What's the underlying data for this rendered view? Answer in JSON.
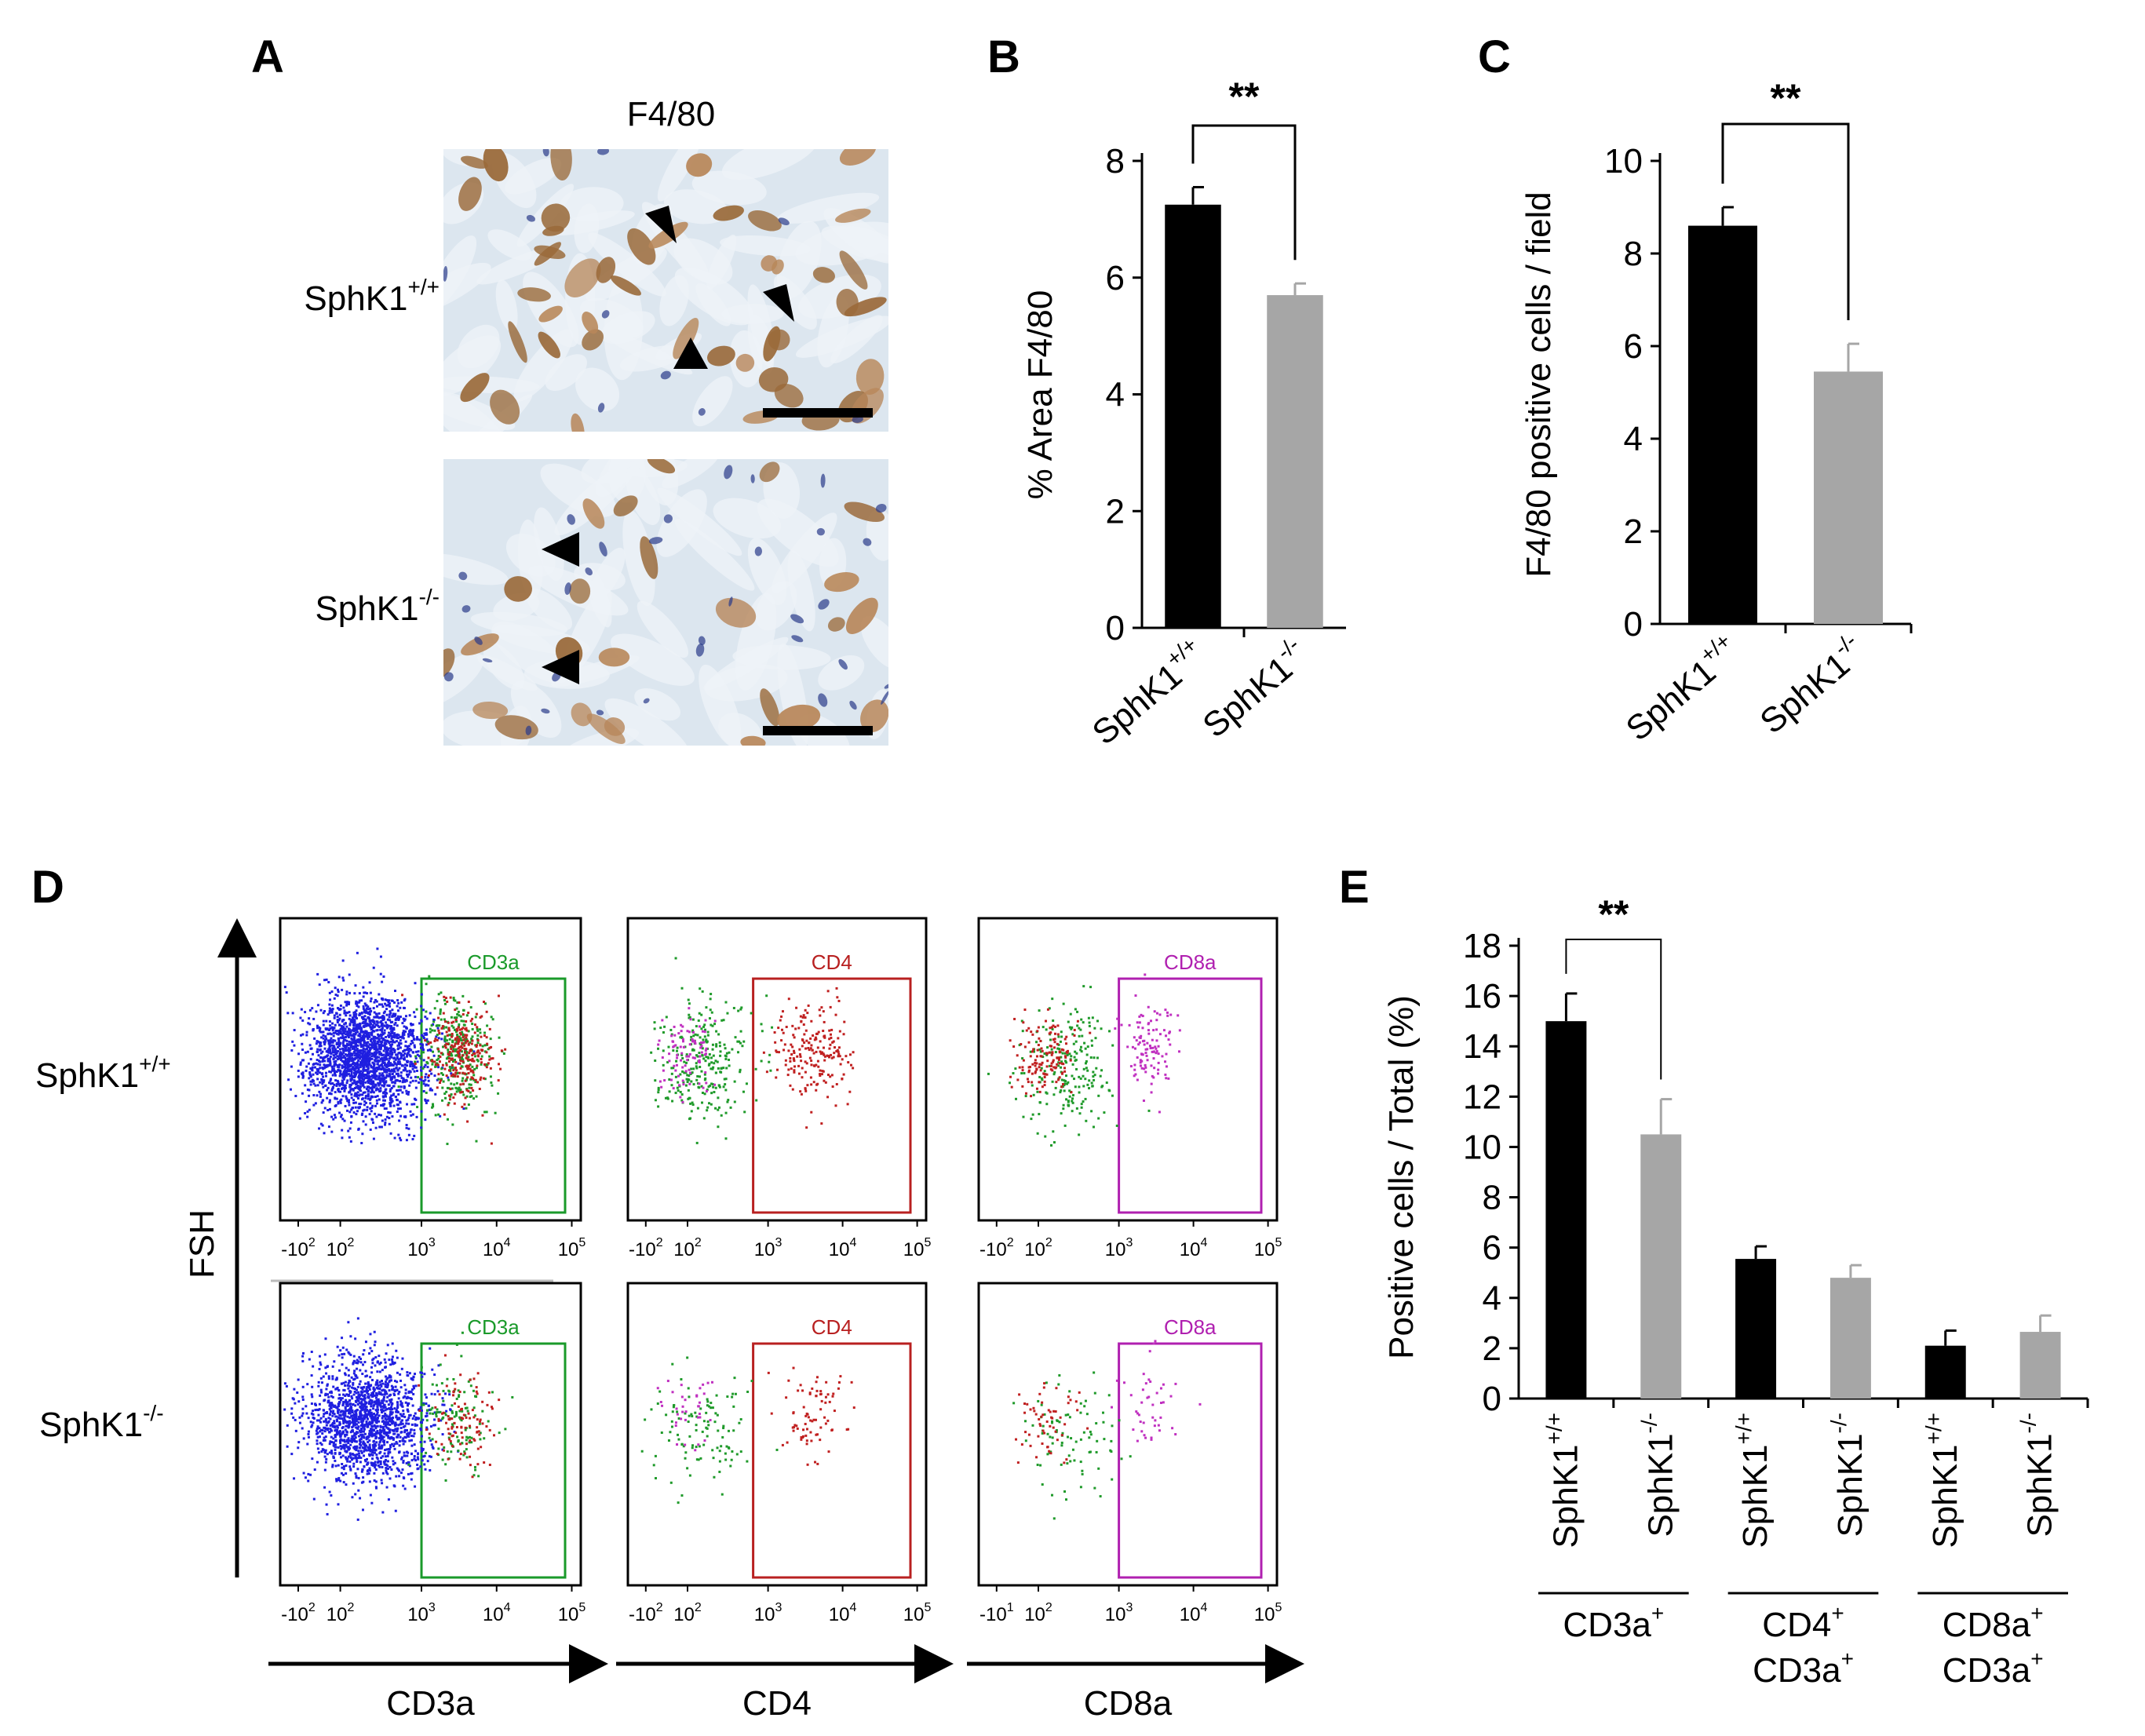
{
  "panel_letters": {
    "A": "A",
    "B": "B",
    "C": "C",
    "D": "D",
    "E": "E"
  },
  "panel_A": {
    "stain_title": "F4/80",
    "rows": [
      {
        "label": "SphK1",
        "sup": "+/+"
      },
      {
        "label": "SphK1",
        "sup": "-/-"
      }
    ],
    "colors": {
      "background": "#dce6ef",
      "stain": "#9a6a3a",
      "nuclei": "#2a3a8a",
      "arrow": "#000000"
    }
  },
  "chart_data": [
    {
      "id": "B",
      "type": "bar",
      "categories": [
        {
          "label": "SphK1",
          "sup": "+/+"
        },
        {
          "label": "SphK1",
          "sup": "-/-"
        }
      ],
      "values": [
        7.25,
        5.7
      ],
      "errors": [
        0.3,
        0.2
      ],
      "colors": [
        "#000000",
        "#a6a6a6"
      ],
      "ylabel": "% Area F4/80",
      "ylim": [
        0,
        8
      ],
      "yticks": [
        "0",
        "2",
        "4",
        "6",
        "8"
      ],
      "significance": "**"
    },
    {
      "id": "C",
      "type": "bar",
      "categories": [
        {
          "label": "SphK1",
          "sup": "+/+"
        },
        {
          "label": "SphK1",
          "sup": "-/-"
        }
      ],
      "values": [
        8.6,
        5.45
      ],
      "errors": [
        0.4,
        0.6
      ],
      "colors": [
        "#000000",
        "#a6a6a6"
      ],
      "ylabel": "F4/80 positive cells / field",
      "ylim": [
        0,
        10
      ],
      "yticks": [
        "0",
        "2",
        "4",
        "6",
        "8",
        "10"
      ],
      "significance": "**"
    },
    {
      "id": "D",
      "type": "scatter",
      "y_axis_label": "FSH",
      "rows": [
        {
          "label": "SphK1",
          "sup": "+/+"
        },
        {
          "label": "SphK1",
          "sup": "-/-"
        }
      ],
      "plots": [
        {
          "x_axis_label": "CD3a",
          "gate_label": "CD3a",
          "gate_color": "#1a9a2a"
        },
        {
          "x_axis_label": "CD4",
          "gate_label": "CD4",
          "gate_color": "#b82020"
        },
        {
          "x_axis_label": "CD8a",
          "gate_label": "CD8a",
          "gate_color": "#b020b0"
        }
      ],
      "x_ticks_1": [
        "-10",
        "2",
        "10",
        "2",
        "10",
        "3",
        "10",
        "4",
        "10",
        "5"
      ],
      "x_tick_labels": [
        {
          "base": "-10",
          "exp": "2"
        },
        {
          "base": "10",
          "exp": "2"
        },
        {
          "base": "10",
          "exp": "3"
        },
        {
          "base": "10",
          "exp": "4"
        },
        {
          "base": "10",
          "exp": "5"
        }
      ],
      "x_tick_labels_cd8_bottom": [
        {
          "base": "-10",
          "exp": "1"
        },
        {
          "base": "10",
          "exp": "2"
        },
        {
          "base": "10",
          "exp": "3"
        },
        {
          "base": "10",
          "exp": "4"
        },
        {
          "base": "10",
          "exp": "5"
        }
      ],
      "dot_colors": {
        "blue": "#1f1fe0",
        "green": "#1f9a2a",
        "red": "#c02020",
        "magenta": "#c030c0"
      }
    },
    {
      "id": "E",
      "type": "bar",
      "categories": [
        {
          "label": "SphK1",
          "sup": "+/+"
        },
        {
          "label": "SphK1",
          "sup": "-/-"
        },
        {
          "label": "SphK1",
          "sup": "+/+"
        },
        {
          "label": "SphK1",
          "sup": "-/-"
        },
        {
          "label": "SphK1",
          "sup": "+/+"
        },
        {
          "label": "SphK1",
          "sup": "-/-"
        }
      ],
      "values": [
        15.0,
        10.5,
        5.55,
        4.8,
        2.1,
        2.65
      ],
      "errors": [
        1.1,
        1.4,
        0.5,
        0.5,
        0.6,
        0.65
      ],
      "colors": [
        "#000000",
        "#a6a6a6",
        "#000000",
        "#a6a6a6",
        "#000000",
        "#a6a6a6"
      ],
      "ylabel": "Positive cells / Total (%)",
      "ylim": [
        0,
        18
      ],
      "yticks": [
        "0",
        "2",
        "4",
        "6",
        "8",
        "10",
        "12",
        "14",
        "16",
        "18"
      ],
      "groups": [
        {
          "lines": [
            {
              "text": "CD3a",
              "sup": "+"
            }
          ]
        },
        {
          "lines": [
            {
              "text": "CD4",
              "sup": "+"
            },
            {
              "text": "CD3a",
              "sup": "+"
            }
          ]
        },
        {
          "lines": [
            {
              "text": "CD8a",
              "sup": "+"
            },
            {
              "text": "CD3a",
              "sup": "+"
            }
          ]
        }
      ],
      "significance": "**"
    }
  ]
}
